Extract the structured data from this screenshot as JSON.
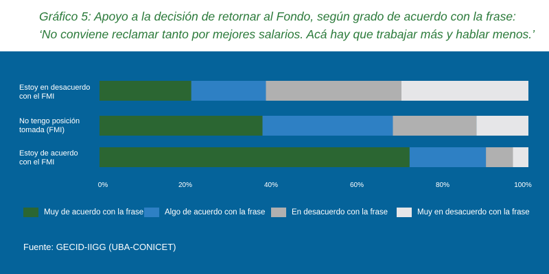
{
  "title_line1": "Gráfico 5: Apoyo a la decisión de retornar al Fondo, según grado de acuerdo con la frase:",
  "title_line2": "‘No conviene reclamar tanto por mejores salarios. Acá hay que trabajar más y hablar menos.’",
  "source": "Fuente: GECID-IIGG (UBA-CONICET)",
  "chart_data": {
    "type": "bar",
    "orientation": "horizontal",
    "stacked": true,
    "categories": [
      [
        "Estoy en desacuerdo",
        "con el FMI"
      ],
      [
        "No tengo posición",
        "tomada (FMI)"
      ],
      [
        "Estoy de acuerdo",
        "con el FMI"
      ]
    ],
    "series": [
      {
        "name": "Muy de acuerdo con la frase",
        "color": "#2b6632",
        "values": [
          21.4,
          38.0,
          72.3
        ]
      },
      {
        "name": "Algo de acuerdo con la frase",
        "color": "#2e80c4",
        "values": [
          17.4,
          30.4,
          17.8
        ]
      },
      {
        "name": "En desacuerdo con la frase",
        "color": "#b0b0b0",
        "values": [
          31.6,
          19.5,
          6.3
        ]
      },
      {
        "name": "Muy en desacuerdo con la frase",
        "color": "#e6e6e8",
        "values": [
          29.6,
          12.1,
          3.6
        ]
      }
    ],
    "xlim": [
      0,
      100
    ],
    "xticks": [
      "0%",
      "20%",
      "40%",
      "60%",
      "80%",
      "100%"
    ],
    "grid": false,
    "legend": "bottom"
  }
}
